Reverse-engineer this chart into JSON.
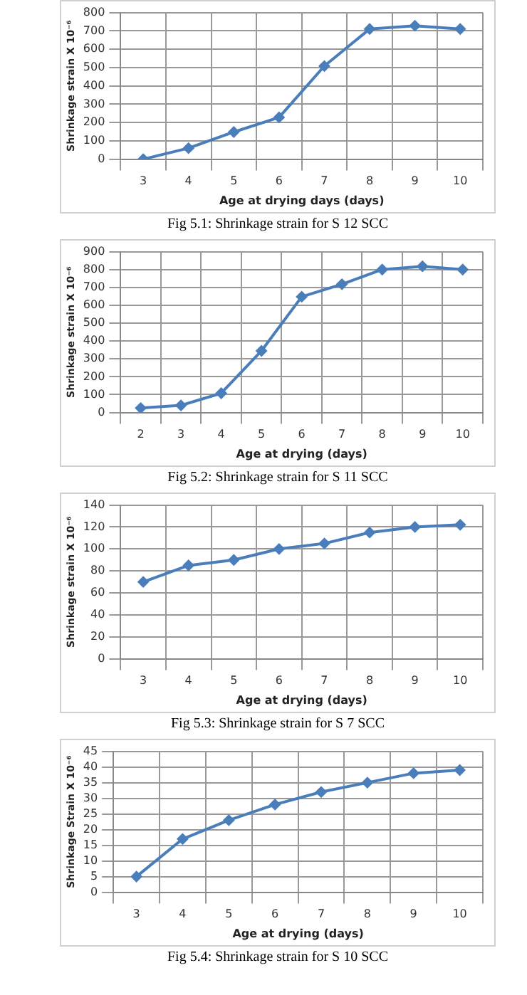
{
  "chart_data": [
    {
      "type": "line",
      "xlabel": "Age at drying days (days)",
      "ylabel": "Shrinkage strain X 10⁻⁶",
      "categories": [
        "3",
        "4",
        "5",
        "6",
        "7",
        "8",
        "9",
        "10"
      ],
      "series": [
        {
          "color": "#4a7ebb",
          "values": [
            0,
            60,
            148,
            228,
            508,
            710,
            728,
            710
          ]
        }
      ],
      "ylim": [
        0,
        800
      ],
      "yticks": [
        0,
        100,
        200,
        300,
        400,
        500,
        600,
        700,
        800
      ],
      "grid": true,
      "legend": false,
      "marker": "diamond",
      "line_style": "solid",
      "annotations": [
        "Fig 5.1: Shrinkage strain for S 12 SCC"
      ]
    },
    {
      "type": "line",
      "xlabel": "Age at drying (days)",
      "ylabel": "Shrinkage strain X 10⁻⁶",
      "categories": [
        "2",
        "3",
        "4",
        "5",
        "6",
        "7",
        "8",
        "9",
        "10"
      ],
      "series": [
        {
          "color": "#4a7ebb",
          "values": [
            25,
            40,
            108,
            345,
            648,
            718,
            800,
            818,
            800
          ]
        }
      ],
      "ylim": [
        0,
        900
      ],
      "yticks": [
        0,
        100,
        200,
        300,
        400,
        500,
        600,
        700,
        800,
        900
      ],
      "grid": true,
      "legend": false,
      "marker": "diamond",
      "line_style": "solid",
      "annotations": [
        "Fig 5.2: Shrinkage strain for S 11 SCC"
      ]
    },
    {
      "type": "line",
      "xlabel": "Age at drying (days)",
      "ylabel": "Shrinkage strain X 10⁻⁶",
      "categories": [
        "3",
        "4",
        "5",
        "6",
        "7",
        "8",
        "9",
        "10"
      ],
      "series": [
        {
          "color": "#4a7ebb",
          "values": [
            70,
            85,
            90,
            100,
            105,
            115,
            120,
            122
          ]
        }
      ],
      "ylim": [
        0,
        140
      ],
      "yticks": [
        0,
        20,
        40,
        60,
        80,
        100,
        120,
        140
      ],
      "grid": true,
      "legend": false,
      "marker": "diamond",
      "line_style": "solid",
      "annotations": [
        "Fig 5.3: Shrinkage strain for S 7 SCC"
      ]
    },
    {
      "type": "line",
      "xlabel": "Age at drying (days)",
      "ylabel": "Shrinkage Strain X 10⁻⁶",
      "categories": [
        "3",
        "4",
        "5",
        "6",
        "7",
        "8",
        "9",
        "10"
      ],
      "series": [
        {
          "color": "#4a7ebb",
          "values": [
            5,
            17,
            23,
            28,
            32,
            35,
            38,
            39
          ]
        }
      ],
      "ylim": [
        0,
        45
      ],
      "yticks": [
        0,
        5,
        10,
        15,
        20,
        25,
        30,
        35,
        40,
        45
      ],
      "grid": true,
      "legend": false,
      "marker": "diamond",
      "line_style": "solid",
      "annotations": [
        "Fig 5.4: Shrinkage strain for S 10 SCC"
      ]
    }
  ]
}
